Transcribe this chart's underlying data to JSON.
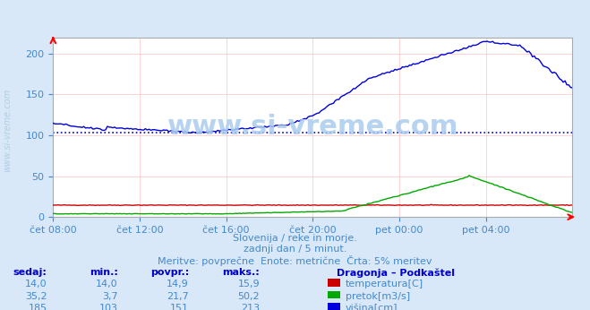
{
  "title": "Dragonja - Podkaštel",
  "bg_color": "#d8e8f8",
  "plot_bg_color": "#ffffff",
  "grid_color": "#ffaaaa",
  "text_color": "#4488cc",
  "title_color": "#0000cc",
  "xlabel_times": [
    "čet 08:00",
    "čet 12:00",
    "čet 16:00",
    "čet 20:00",
    "pet 00:00",
    "pet 04:00"
  ],
  "ylim": [
    0,
    220
  ],
  "yticks": [
    0,
    50,
    100,
    150,
    200
  ],
  "avg_line_value": 103,
  "subtitle_line1": "Slovenija / reke in morje.",
  "subtitle_line2": "zadnji dan / 5 minut.",
  "subtitle_line3": "Meritve: povprečne  Enote: metrične  Črta: 5% meritev",
  "table_headers": [
    "sedaj:",
    "min.:",
    "povpr.:",
    "maks.:"
  ],
  "table_data": [
    [
      "14,0",
      "14,0",
      "14,9",
      "15,9"
    ],
    [
      "35,2",
      "3,7",
      "21,7",
      "50,2"
    ],
    [
      "185",
      "103",
      "151",
      "213"
    ]
  ],
  "legend_title": "Dragonja – Podkaštel",
  "legend_items": [
    "temperatura[C]",
    "pretok[m3/s]",
    "višina[cm]"
  ],
  "legend_colors": [
    "#cc0000",
    "#00aa00",
    "#0000cc"
  ],
  "watermark": "www.si-vreme.com",
  "watermark_color": "#aaccee",
  "temp_color": "#cc0000",
  "flow_color": "#00aa00",
  "height_color": "#0000dd",
  "avg_line_color": "#0000dd"
}
